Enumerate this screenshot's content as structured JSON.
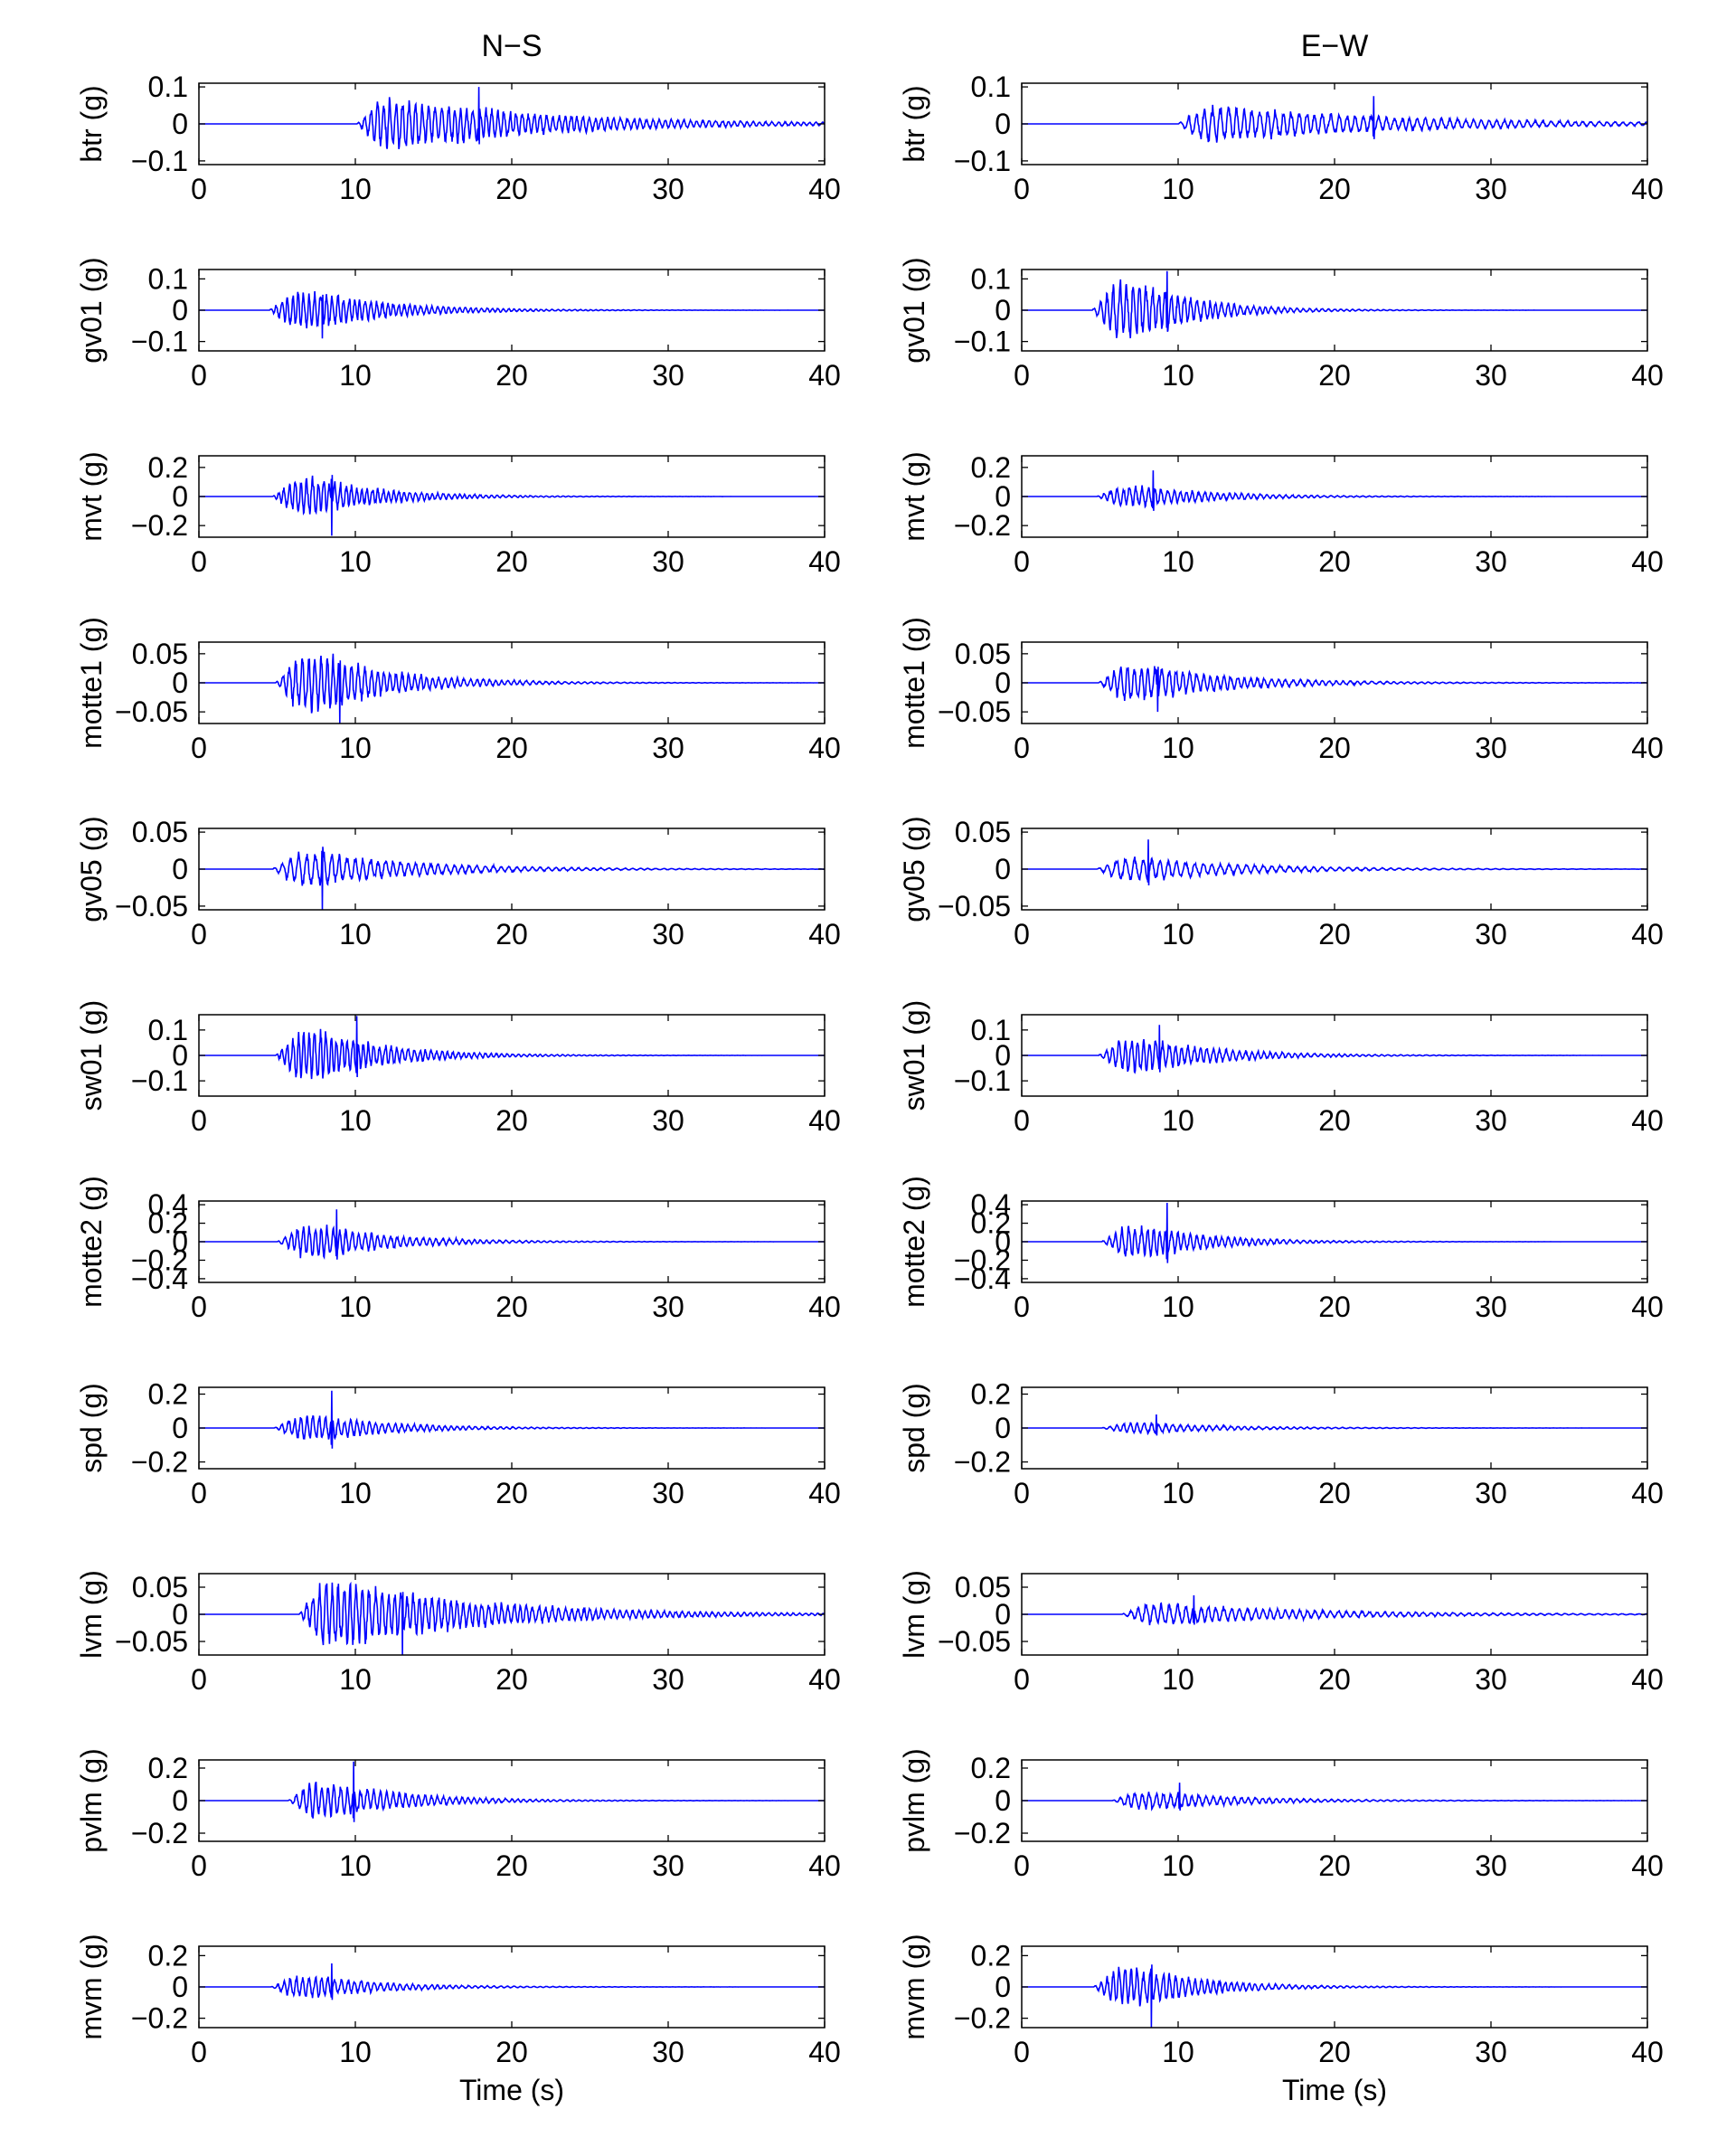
{
  "chart_data": {
    "type": "line",
    "line_color": "#0000ff",
    "axes_color": "#000000",
    "background": "#ffffff",
    "grid": false,
    "columns": [
      {
        "title": "N−S",
        "xlabel": "Time (s)"
      },
      {
        "title": "E−W",
        "xlabel": "Time (s)"
      }
    ],
    "xlim": [
      0,
      40
    ],
    "xticks": [
      0,
      10,
      20,
      30,
      40
    ],
    "rows": [
      {
        "station": "btr",
        "ylabel": "btr (g)",
        "ylim": [
          -0.11,
          0.11
        ],
        "yticks": [
          -0.1,
          0,
          0.1
        ],
        "yticklabels": [
          "−0.1",
          "0",
          "0.1"
        ],
        "panels": [
          {
            "onset": 10.1,
            "peak_time": 17.9,
            "peak": 0.1,
            "amp": 0.055,
            "decay": 10,
            "period": 0.4,
            "seed": 11
          },
          {
            "onset": 10.0,
            "peak_time": 22.5,
            "peak": 0.075,
            "amp": 0.04,
            "decay": 12,
            "period": 0.5,
            "seed": 12
          }
        ]
      },
      {
        "station": "gv01",
        "ylabel": "gv01 (g)",
        "ylim": [
          -0.13,
          0.13
        ],
        "yticks": [
          -0.1,
          0,
          0.1
        ],
        "yticklabels": [
          "−0.1",
          "0",
          "0.1"
        ],
        "panels": [
          {
            "onset": 4.5,
            "peak_time": 7.9,
            "peak": -0.09,
            "amp": 0.05,
            "decay": 5,
            "period": 0.35,
            "seed": 21
          },
          {
            "onset": 4.5,
            "peak_time": 9.3,
            "peak": 0.125,
            "amp": 0.075,
            "decay": 4,
            "period": 0.4,
            "seed": 22
          }
        ]
      },
      {
        "station": "mvt",
        "ylabel": "mvt (g)",
        "ylim": [
          -0.28,
          0.28
        ],
        "yticks": [
          -0.2,
          0,
          0.2
        ],
        "yticklabels": [
          "−0.2",
          "0",
          "0.2"
        ],
        "panels": [
          {
            "onset": 4.7,
            "peak_time": 8.5,
            "peak": -0.27,
            "amp": 0.1,
            "decay": 4.5,
            "period": 0.35,
            "seed": 31
          },
          {
            "onset": 4.8,
            "peak_time": 8.4,
            "peak": 0.18,
            "amp": 0.06,
            "decay": 5,
            "period": 0.4,
            "seed": 32
          }
        ]
      },
      {
        "station": "motte1",
        "ylabel": "motte1 (g)",
        "ylim": [
          -0.07,
          0.07
        ],
        "yticks": [
          -0.05,
          0,
          0.05
        ],
        "yticklabels": [
          "−0.05",
          "0",
          "0.05"
        ],
        "panels": [
          {
            "onset": 4.9,
            "peak_time": 9.0,
            "peak": -0.07,
            "amp": 0.04,
            "decay": 5,
            "period": 0.4,
            "seed": 41
          },
          {
            "onset": 4.9,
            "peak_time": 8.7,
            "peak": -0.05,
            "amp": 0.025,
            "decay": 6,
            "period": 0.45,
            "seed": 42
          }
        ]
      },
      {
        "station": "gv05",
        "ylabel": "gv05 (g)",
        "ylim": [
          -0.055,
          0.055
        ],
        "yticks": [
          -0.05,
          0,
          0.05
        ],
        "yticklabels": [
          "−0.05",
          "0",
          "0.05"
        ],
        "panels": [
          {
            "onset": 4.7,
            "peak_time": 7.9,
            "peak": -0.055,
            "amp": 0.018,
            "decay": 7,
            "period": 0.5,
            "seed": 51
          },
          {
            "onset": 4.8,
            "peak_time": 8.1,
            "peak": 0.04,
            "amp": 0.013,
            "decay": 7,
            "period": 0.55,
            "seed": 52
          }
        ]
      },
      {
        "station": "sw01",
        "ylabel": "sw01 (g)",
        "ylim": [
          -0.16,
          0.16
        ],
        "yticks": [
          -0.1,
          0,
          0.1
        ],
        "yticklabels": [
          "−0.1",
          "0",
          "0.1"
        ],
        "panels": [
          {
            "onset": 4.9,
            "peak_time": 10.1,
            "peak": 0.155,
            "amp": 0.08,
            "decay": 4.5,
            "period": 0.35,
            "seed": 61
          },
          {
            "onset": 4.9,
            "peak_time": 8.8,
            "peak": 0.12,
            "amp": 0.055,
            "decay": 5,
            "period": 0.4,
            "seed": 62
          }
        ]
      },
      {
        "station": "motte2",
        "ylabel": "motte2 (g)",
        "ylim": [
          -0.44,
          0.44
        ],
        "yticks": [
          -0.4,
          -0.2,
          0,
          0.2,
          0.4
        ],
        "yticklabels": [
          "−0.4",
          "−0.2",
          "0",
          "0.2",
          "0.4"
        ],
        "panels": [
          {
            "onset": 5.0,
            "peak_time": 8.8,
            "peak": 0.35,
            "amp": 0.14,
            "decay": 5,
            "period": 0.4,
            "seed": 71
          },
          {
            "onset": 5.1,
            "peak_time": 9.3,
            "peak": 0.42,
            "amp": 0.14,
            "decay": 4.5,
            "period": 0.4,
            "seed": 72
          }
        ]
      },
      {
        "station": "spd",
        "ylabel": "spd (g)",
        "ylim": [
          -0.24,
          0.24
        ],
        "yticks": [
          -0.2,
          0,
          0.2
        ],
        "yticklabels": [
          "−0.2",
          "0",
          "0.2"
        ],
        "panels": [
          {
            "onset": 4.8,
            "peak_time": 8.5,
            "peak": 0.22,
            "amp": 0.06,
            "decay": 5,
            "period": 0.4,
            "seed": 81
          },
          {
            "onset": 5.1,
            "peak_time": 8.6,
            "peak": 0.08,
            "amp": 0.025,
            "decay": 6,
            "period": 0.45,
            "seed": 82
          }
        ]
      },
      {
        "station": "lvm",
        "ylabel": "lvm (g)",
        "ylim": [
          -0.075,
          0.075
        ],
        "yticks": [
          -0.05,
          0,
          0.05
        ],
        "yticklabels": [
          "−0.05",
          "0",
          "0.05"
        ],
        "panels": [
          {
            "onset": 6.4,
            "peak_time": 13.0,
            "peak": -0.075,
            "amp": 0.05,
            "decay": 9,
            "period": 0.4,
            "seed": 91
          },
          {
            "onset": 6.4,
            "peak_time": 11.0,
            "peak": 0.035,
            "amp": 0.016,
            "decay": 10,
            "period": 0.5,
            "seed": 92
          }
        ]
      },
      {
        "station": "pvlm",
        "ylabel": "pvlm (g)",
        "ylim": [
          -0.25,
          0.25
        ],
        "yticks": [
          -0.2,
          0,
          0.2
        ],
        "yticklabels": [
          "−0.2",
          "0",
          "0.2"
        ],
        "panels": [
          {
            "onset": 5.7,
            "peak_time": 9.9,
            "peak": 0.24,
            "amp": 0.09,
            "decay": 5,
            "period": 0.4,
            "seed": 101
          },
          {
            "onset": 5.8,
            "peak_time": 10.1,
            "peak": 0.11,
            "amp": 0.045,
            "decay": 6,
            "period": 0.45,
            "seed": 102
          }
        ]
      },
      {
        "station": "mvm",
        "ylabel": "mvm (g)",
        "ylim": [
          -0.26,
          0.26
        ],
        "yticks": [
          -0.2,
          0,
          0.2
        ],
        "yticklabels": [
          "−0.2",
          "0",
          "0.2"
        ],
        "panels": [
          {
            "onset": 4.6,
            "peak_time": 8.5,
            "peak": 0.15,
            "amp": 0.055,
            "decay": 5,
            "period": 0.4,
            "seed": 111
          },
          {
            "onset": 4.6,
            "peak_time": 8.3,
            "peak": -0.26,
            "amp": 0.1,
            "decay": 4.5,
            "period": 0.4,
            "seed": 112
          }
        ]
      }
    ]
  }
}
